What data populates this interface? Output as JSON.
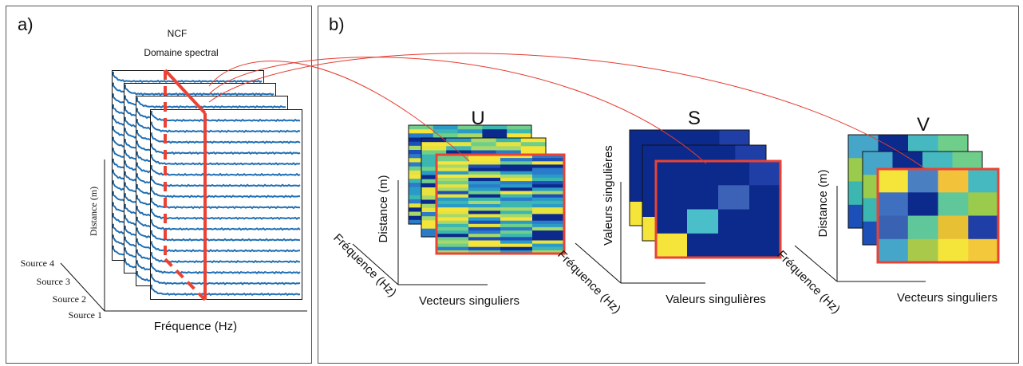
{
  "panel_a": {
    "letter": "a)",
    "title_1": "NCF",
    "title_2": "Domaine spectral",
    "y_axis": "Distance (m)",
    "x_axis": "Fréquence (Hz)",
    "sources": [
      "Source 1",
      "Source 2",
      "Source 3",
      "Source 4"
    ]
  },
  "panel_b": {
    "letter": "b)",
    "matrices": [
      {
        "name": "U",
        "y_axis": "Distance (m)",
        "x_axis": "Vecteurs singuliers",
        "z_axis": "Fréquence (Hz)"
      },
      {
        "name": "S",
        "y_axis": "Valeurs singulières",
        "x_axis": "Valeurs singulières",
        "z_axis": "Fréquence (Hz)"
      },
      {
        "name": "V",
        "y_axis": "Distance (m)",
        "x_axis": "Vecteurs singuliers",
        "z_axis": "Fréquence (Hz)"
      }
    ]
  },
  "colors": {
    "highlight_red": "#ea4335",
    "trace_blue": "#1f6fb4",
    "matrix_navy": "#0b2a8c",
    "matrix_yellow": "#f5e43a"
  }
}
